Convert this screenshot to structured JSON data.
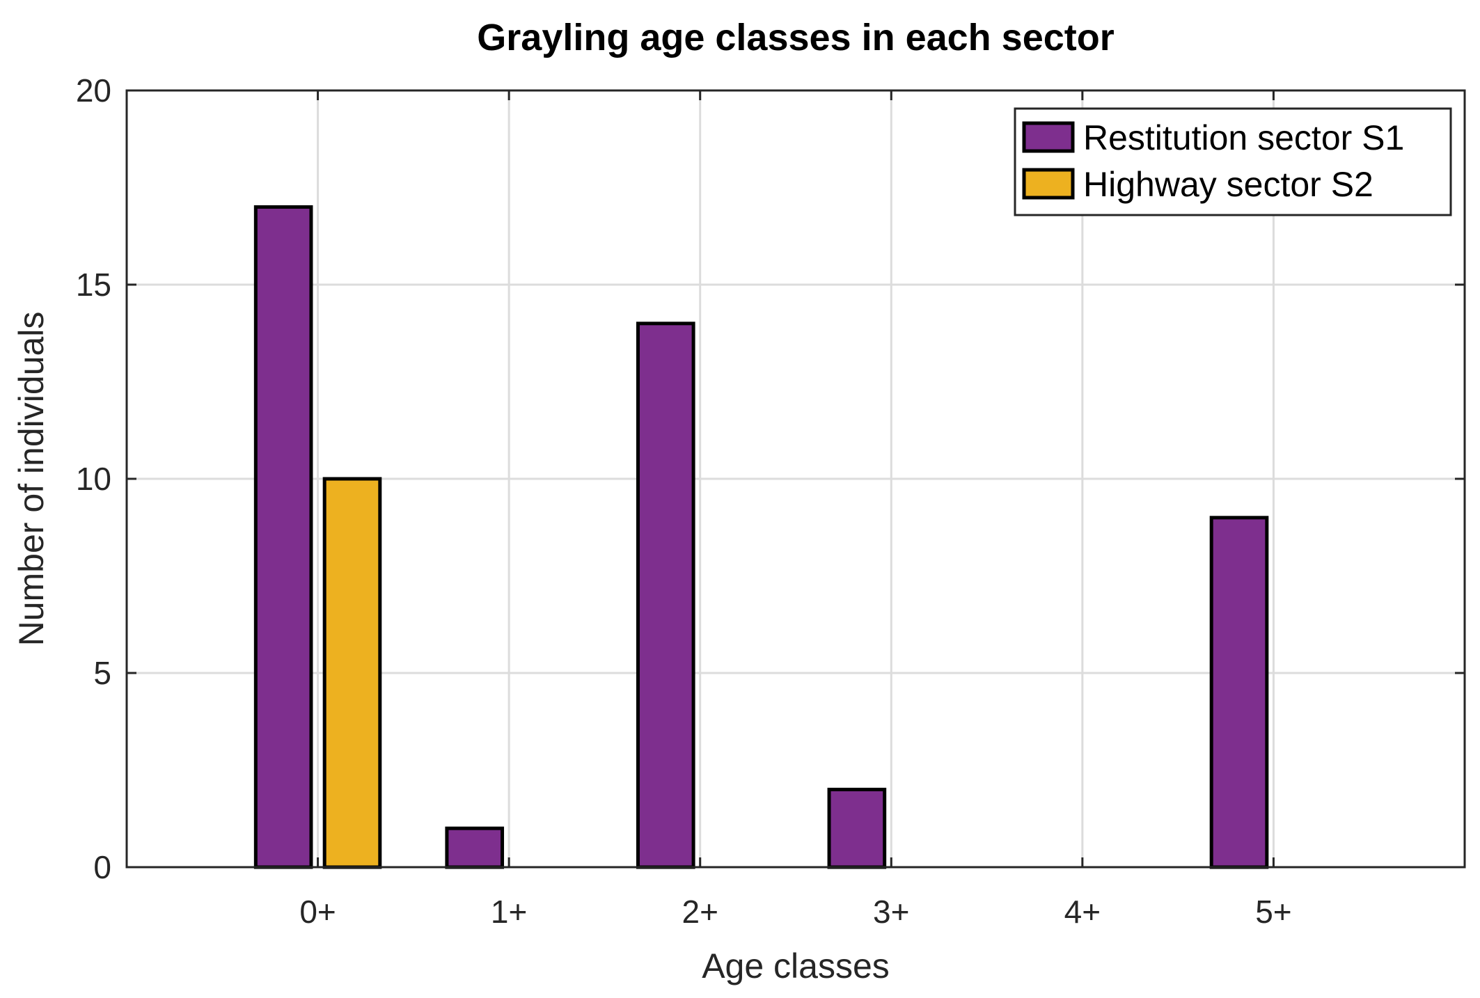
{
  "chart_data": {
    "type": "bar",
    "title": "Grayling age classes in each sector",
    "xlabel": "Age classes",
    "ylabel": "Number of individuals",
    "categories": [
      "0+",
      "1+",
      "2+",
      "3+",
      "4+",
      "5+"
    ],
    "ylim": [
      0,
      20
    ],
    "yticks": [
      "0",
      "5",
      "10",
      "15",
      "20"
    ],
    "ytick_values": [
      0,
      5,
      10,
      15,
      20
    ],
    "xlim": [
      -1,
      6
    ],
    "grid": true,
    "legend_position": "top-right",
    "series": [
      {
        "name": "Restitution sector S1",
        "color": "#7e2f8e",
        "values": [
          17,
          1,
          14,
          2,
          0,
          9
        ]
      },
      {
        "name": "Highway sector S2",
        "color": "#edb120",
        "values": [
          10,
          0,
          0,
          0,
          0,
          0
        ]
      }
    ]
  }
}
